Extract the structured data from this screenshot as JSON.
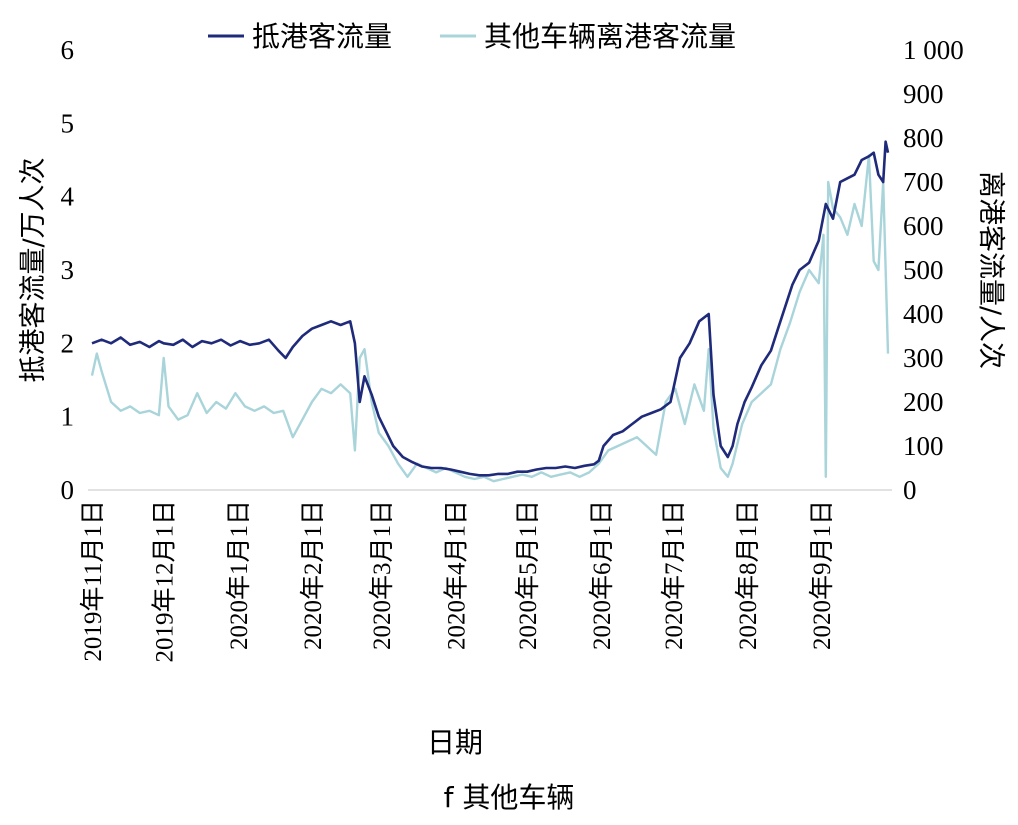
{
  "chart_data": {
    "type": "line",
    "xlabel": "日期",
    "caption": "f 其他车辆",
    "left_axis": {
      "label": "抵港客流量/万人次",
      "ylim": [
        0,
        6
      ],
      "ticks": [
        "0",
        "1",
        "2",
        "3",
        "4",
        "5",
        "6"
      ]
    },
    "right_axis": {
      "label": "离港客流量/人次",
      "ylim": [
        0,
        1000
      ],
      "ticks": [
        "0",
        "100",
        "200",
        "300",
        "400",
        "500",
        "600",
        "700",
        "800",
        "900",
        "1 000"
      ]
    },
    "x_ticks": [
      "2019年11月1日",
      "2019年12月1日",
      "2020年1月1日",
      "2020年2月1日",
      "2020年3月1日",
      "2020年4月1日",
      "2020年5月1日",
      "2020年6月1日",
      "2020年7月1日",
      "2020年8月1日",
      "2020年9月1日"
    ],
    "x_range_days": [
      0,
      333
    ],
    "legend_position": "top",
    "series": [
      {
        "name": "抵港客流量",
        "axis": "left",
        "color": "#1f2a7a",
        "points": [
          [
            0,
            2.0
          ],
          [
            4,
            2.05
          ],
          [
            8,
            2.0
          ],
          [
            12,
            2.08
          ],
          [
            16,
            1.98
          ],
          [
            20,
            2.02
          ],
          [
            24,
            1.95
          ],
          [
            28,
            2.03
          ],
          [
            30,
            2.0
          ],
          [
            34,
            1.98
          ],
          [
            38,
            2.05
          ],
          [
            42,
            1.95
          ],
          [
            46,
            2.03
          ],
          [
            50,
            2.0
          ],
          [
            54,
            2.05
          ],
          [
            58,
            1.97
          ],
          [
            62,
            2.03
          ],
          [
            66,
            1.98
          ],
          [
            70,
            2.0
          ],
          [
            74,
            2.05
          ],
          [
            78,
            1.9
          ],
          [
            81,
            1.8
          ],
          [
            84,
            1.95
          ],
          [
            88,
            2.1
          ],
          [
            92,
            2.2
          ],
          [
            96,
            2.25
          ],
          [
            100,
            2.3
          ],
          [
            104,
            2.25
          ],
          [
            108,
            2.3
          ],
          [
            110,
            2.0
          ],
          [
            112,
            1.2
          ],
          [
            114,
            1.55
          ],
          [
            117,
            1.3
          ],
          [
            120,
            1.0
          ],
          [
            123,
            0.8
          ],
          [
            126,
            0.6
          ],
          [
            130,
            0.45
          ],
          [
            134,
            0.38
          ],
          [
            138,
            0.32
          ],
          [
            142,
            0.3
          ],
          [
            146,
            0.3
          ],
          [
            150,
            0.28
          ],
          [
            154,
            0.25
          ],
          [
            158,
            0.22
          ],
          [
            162,
            0.2
          ],
          [
            166,
            0.2
          ],
          [
            170,
            0.22
          ],
          [
            174,
            0.22
          ],
          [
            178,
            0.25
          ],
          [
            182,
            0.25
          ],
          [
            186,
            0.28
          ],
          [
            190,
            0.3
          ],
          [
            194,
            0.3
          ],
          [
            198,
            0.32
          ],
          [
            202,
            0.3
          ],
          [
            206,
            0.33
          ],
          [
            210,
            0.35
          ],
          [
            212,
            0.4
          ],
          [
            214,
            0.6
          ],
          [
            218,
            0.75
          ],
          [
            222,
            0.8
          ],
          [
            226,
            0.9
          ],
          [
            230,
            1.0
          ],
          [
            234,
            1.05
          ],
          [
            238,
            1.1
          ],
          [
            242,
            1.2
          ],
          [
            246,
            1.8
          ],
          [
            250,
            2.0
          ],
          [
            254,
            2.3
          ],
          [
            258,
            2.4
          ],
          [
            260,
            1.3
          ],
          [
            263,
            0.6
          ],
          [
            266,
            0.45
          ],
          [
            268,
            0.6
          ],
          [
            270,
            0.9
          ],
          [
            273,
            1.2
          ],
          [
            276,
            1.4
          ],
          [
            280,
            1.7
          ],
          [
            284,
            1.9
          ],
          [
            287,
            2.2
          ],
          [
            290,
            2.5
          ],
          [
            293,
            2.8
          ],
          [
            296,
            3.0
          ],
          [
            300,
            3.1
          ],
          [
            304,
            3.4
          ],
          [
            307,
            3.9
          ],
          [
            310,
            3.7
          ],
          [
            313,
            4.2
          ],
          [
            316,
            4.25
          ],
          [
            319,
            4.3
          ],
          [
            322,
            4.5
          ],
          [
            325,
            4.55
          ],
          [
            327,
            4.6
          ],
          [
            329,
            4.3
          ],
          [
            331,
            4.2
          ],
          [
            332,
            4.75
          ],
          [
            333,
            4.6
          ]
        ]
      },
      {
        "name": "其他车辆离港客流量",
        "axis": "right",
        "color": "#a8d4da",
        "points": [
          [
            0,
            260
          ],
          [
            2,
            310
          ],
          [
            4,
            270
          ],
          [
            8,
            200
          ],
          [
            12,
            180
          ],
          [
            16,
            190
          ],
          [
            20,
            175
          ],
          [
            24,
            180
          ],
          [
            28,
            170
          ],
          [
            30,
            300
          ],
          [
            32,
            190
          ],
          [
            36,
            160
          ],
          [
            40,
            170
          ],
          [
            44,
            220
          ],
          [
            48,
            175
          ],
          [
            52,
            200
          ],
          [
            56,
            185
          ],
          [
            60,
            220
          ],
          [
            64,
            190
          ],
          [
            68,
            180
          ],
          [
            72,
            190
          ],
          [
            76,
            175
          ],
          [
            80,
            180
          ],
          [
            84,
            120
          ],
          [
            88,
            160
          ],
          [
            92,
            200
          ],
          [
            96,
            230
          ],
          [
            100,
            220
          ],
          [
            104,
            240
          ],
          [
            108,
            220
          ],
          [
            110,
            90
          ],
          [
            112,
            300
          ],
          [
            114,
            320
          ],
          [
            117,
            200
          ],
          [
            120,
            130
          ],
          [
            124,
            100
          ],
          [
            128,
            60
          ],
          [
            132,
            30
          ],
          [
            136,
            60
          ],
          [
            140,
            50
          ],
          [
            144,
            40
          ],
          [
            148,
            50
          ],
          [
            152,
            40
          ],
          [
            156,
            30
          ],
          [
            160,
            25
          ],
          [
            164,
            30
          ],
          [
            168,
            20
          ],
          [
            172,
            25
          ],
          [
            176,
            30
          ],
          [
            180,
            35
          ],
          [
            184,
            30
          ],
          [
            188,
            40
          ],
          [
            192,
            30
          ],
          [
            196,
            35
          ],
          [
            200,
            40
          ],
          [
            204,
            30
          ],
          [
            208,
            40
          ],
          [
            212,
            60
          ],
          [
            216,
            90
          ],
          [
            220,
            100
          ],
          [
            224,
            110
          ],
          [
            228,
            120
          ],
          [
            232,
            100
          ],
          [
            236,
            80
          ],
          [
            240,
            200
          ],
          [
            244,
            230
          ],
          [
            248,
            150
          ],
          [
            252,
            240
          ],
          [
            256,
            180
          ],
          [
            258,
            320
          ],
          [
            260,
            140
          ],
          [
            263,
            50
          ],
          [
            266,
            30
          ],
          [
            268,
            60
          ],
          [
            272,
            150
          ],
          [
            276,
            200
          ],
          [
            280,
            220
          ],
          [
            284,
            240
          ],
          [
            288,
            320
          ],
          [
            292,
            380
          ],
          [
            296,
            450
          ],
          [
            300,
            500
          ],
          [
            304,
            470
          ],
          [
            306,
            580
          ],
          [
            307,
            30
          ],
          [
            308,
            700
          ],
          [
            310,
            640
          ],
          [
            313,
            620
          ],
          [
            316,
            580
          ],
          [
            319,
            650
          ],
          [
            322,
            600
          ],
          [
            325,
            760
          ],
          [
            327,
            520
          ],
          [
            329,
            500
          ],
          [
            331,
            700
          ],
          [
            333,
            310
          ]
        ]
      }
    ]
  }
}
